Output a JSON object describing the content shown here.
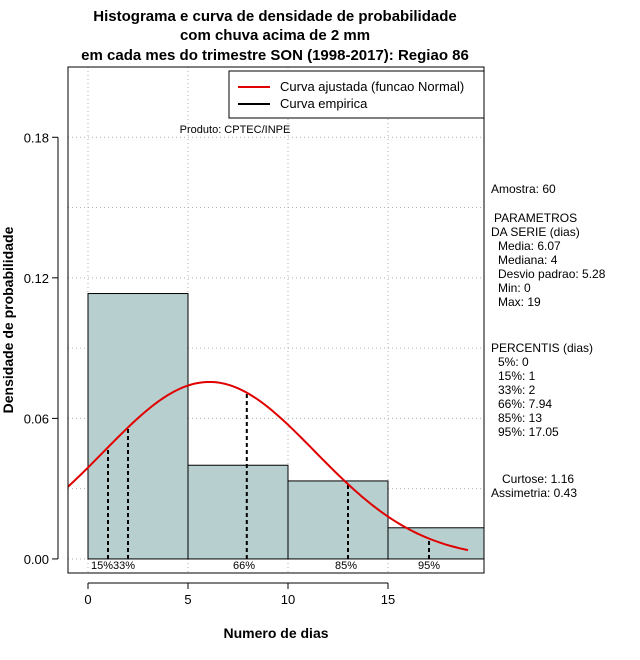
{
  "colors": {
    "bar_fill": "#b7cfcf",
    "bar_stroke": "#000000",
    "curve": "#e00000",
    "grid": "#b0b0b0",
    "percentile_line": "#000000"
  },
  "chart_data": {
    "type": "bar",
    "title": [
      "Histograma e curva de densidade de probabilidade",
      "com chuva acima de 2 mm",
      "em cada mes do trimestre SON (1998-2017): Regiao 86"
    ],
    "xlabel": "Numero de dias",
    "ylabel": "Densidade de probabilidade",
    "credit": "Produto: CPTEC/INPE",
    "xlim": [
      -1,
      19.8
    ],
    "ylim": [
      -0.006,
      0.21
    ],
    "xticks": [
      0,
      5,
      10,
      15
    ],
    "yticks": [
      0.0,
      0.06,
      0.12,
      0.18
    ],
    "ytick_labels": [
      "0.00",
      "0.06",
      "0.12",
      "0.18"
    ],
    "grid": true,
    "bins": [
      {
        "start": 0,
        "end": 5,
        "density": 0.1133
      },
      {
        "start": 5,
        "end": 10,
        "density": 0.04
      },
      {
        "start": 10,
        "end": 15,
        "density": 0.0333
      },
      {
        "start": 15,
        "end": 20,
        "density": 0.0133
      }
    ],
    "fitted_curve": {
      "distribution": "normal",
      "mean": 6.07,
      "sd": 5.28,
      "x_from": -1,
      "x_to": 19
    },
    "percentile_markers": [
      {
        "label": "15%",
        "x": 1
      },
      {
        "label": "33%",
        "x": 2
      },
      {
        "label": "66%",
        "x": 7.94
      },
      {
        "label": "85%",
        "x": 13
      },
      {
        "label": "95%",
        "x": 17.05
      }
    ],
    "percentile_label_row": [
      "15%33%",
      "66%",
      "85%",
      "95%"
    ],
    "legend": {
      "position": "top-right",
      "entries": [
        {
          "label": "Curva ajustada (funcao Normal)",
          "color": "#e00000"
        },
        {
          "label": "Curva empirica",
          "color": "#000000"
        }
      ]
    }
  },
  "stats": {
    "amostra": "Amostra: 60",
    "params_header": [
      "PARAMETROS",
      "DA SERIE (dias)"
    ],
    "params": [
      "Media: 6.07",
      "Mediana: 4",
      "Desvio padrao: 5.28",
      "Min: 0",
      "Max: 19"
    ],
    "percentis_header": "PERCENTIS (dias)",
    "percentis": [
      "5%: 0",
      "15%: 1",
      "33%: 2",
      "66%: 7.94",
      "85%: 13",
      "95%: 17.05"
    ],
    "curtose": "Curtose: 1.16",
    "assimetria": "Assimetria: 0.43"
  }
}
